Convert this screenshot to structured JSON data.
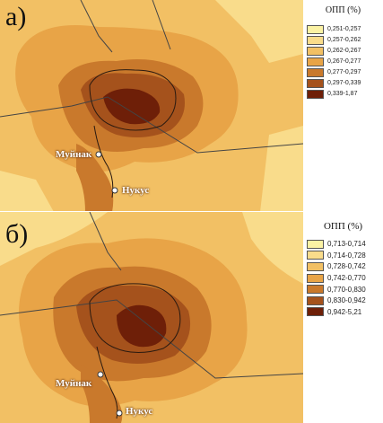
{
  "panels": [
    {
      "letter": "а)",
      "legend_title": "ОПП (%)",
      "legend": [
        {
          "label": "0,251-0,257",
          "color": "#fbf2a4"
        },
        {
          "label": "0,257-0,262",
          "color": "#f9dc8b"
        },
        {
          "label": "0,262-0,267",
          "color": "#f2c064"
        },
        {
          "label": "0,267-0,277",
          "color": "#e8a447"
        },
        {
          "label": "0,277-0,297",
          "color": "#c9792c"
        },
        {
          "label": "0,297-0,339",
          "color": "#a5521c"
        },
        {
          "label": "0,339-1,87",
          "color": "#6e1f08"
        }
      ],
      "cities": [
        "Муйнак",
        "Нукус"
      ]
    },
    {
      "letter": "б)",
      "legend_title": "ОПП (%)",
      "legend": [
        {
          "label": "0,713-0,714",
          "color": "#fbf2a4"
        },
        {
          "label": "0,714-0,728",
          "color": "#f9dc8b"
        },
        {
          "label": "0,728-0,742",
          "color": "#f2c064"
        },
        {
          "label": "0,742-0,770",
          "color": "#e8a447"
        },
        {
          "label": "0,770-0,830",
          "color": "#c9792c"
        },
        {
          "label": "0,830-0,942",
          "color": "#a5521c"
        },
        {
          "label": "0,942-5,21",
          "color": "#6e1f08"
        }
      ],
      "cities": [
        "Муйнак",
        "Нукус"
      ]
    }
  ]
}
